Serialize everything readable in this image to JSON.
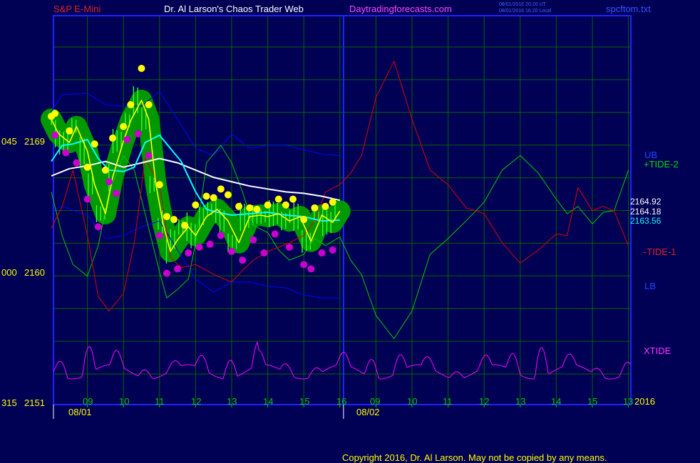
{
  "header": {
    "instrument": "S&P E-Mini",
    "site": "Dr. Al Larson's Chaos Trader Web",
    "url": "Daytradingforecasts.com",
    "stamp1": "08/01/2016 20:20 UT",
    "stamp2": "08/01/2016 16:20 Local",
    "file": "spcftom.txt"
  },
  "axis": {
    "y_left": [
      {
        "code": "045",
        "price": "2169"
      },
      {
        "code": "000",
        "price": "2160"
      },
      {
        "code": "315",
        "price": "2151"
      }
    ],
    "x_hours": [
      "09",
      "10",
      "11",
      "12",
      "13",
      "14",
      "15",
      "16",
      "09",
      "10",
      "11",
      "12",
      "13",
      "14",
      "15",
      "13"
    ],
    "dates": [
      "08/01",
      "08/02"
    ],
    "year": "2016"
  },
  "labels": {
    "ub": "UB",
    "tide2": "+TIDE-2",
    "tide1": "-TIDE-1",
    "lb": "LB",
    "xtide": "XTIDE",
    "price1": "2164.92",
    "price2": "2164.18",
    "price3": "2163.56"
  },
  "footer": {
    "copyright": "Copyright 2016, Dr. Al Larson. May not be copied by any means."
  },
  "colors": {
    "background": "#000055",
    "frame": "#2222ff",
    "grid": "#006600",
    "ub_lb": "#0000ff",
    "tide2": "#00cc00",
    "tide1": "#dd0000",
    "xtide": "#ff00ff",
    "white_avg": "#ffffff",
    "cyan_avg": "#00ffff",
    "yellow_avg": "#ffff00",
    "blob": "#009900",
    "hi_marker": "#ffff00",
    "lo_marker": "#cc00cc"
  },
  "chart_data": {
    "type": "line",
    "y_axis_ticks": [
      2169,
      2160,
      2151
    ],
    "x_ticks": [
      "09",
      "10",
      "11",
      "12",
      "13",
      "14",
      "15",
      "16",
      "09",
      "10",
      "11",
      "12",
      "13",
      "14",
      "15",
      "13"
    ],
    "dates": [
      "08/01",
      "08/02"
    ],
    "last_values": {
      "white": 2164.92,
      "yellow": 2164.18,
      "cyan": 2163.56
    },
    "series": [
      {
        "name": "UB",
        "color": "#0000ff",
        "x": [
          0,
          0.3,
          1,
          1.5,
          2,
          2.5,
          3,
          3.5,
          4,
          4.5,
          5,
          5.5,
          6,
          6.5,
          7,
          7.5,
          8
        ],
        "y": [
          2171,
          2172.2,
          2172.3,
          2171.5,
          2171.4,
          2171.4,
          2172.4,
          2170.5,
          2168.5,
          2168,
          2169.5,
          2168.5,
          2168.7,
          2168.7,
          2168.4,
          2168.1,
          2168
        ]
      },
      {
        "name": "LB",
        "color": "#0000ff",
        "x": [
          0,
          0.3,
          1,
          1.5,
          2,
          2.5,
          3,
          3.5,
          4,
          4.5,
          5,
          5.5,
          6,
          6.5,
          7,
          7.5,
          8
        ],
        "y": [
          2164.2,
          2164.5,
          2163.9,
          2162.3,
          2162.5,
          2163.1,
          2163.5,
          2161.5,
          2159.5,
          2158.6,
          2159.3,
          2159.3,
          2159,
          2158.9,
          2158.4,
          2158.2,
          2158.2
        ]
      },
      {
        "name": "+TIDE-2",
        "color": "#00cc00",
        "x": [
          0,
          0.3,
          0.6,
          1,
          1.3,
          1.6,
          2,
          2.3,
          2.6,
          3,
          3.2,
          3.5,
          3.8,
          4,
          4.3,
          4.7,
          5,
          5.3,
          5.6,
          6,
          6.3,
          6.6,
          7,
          7.3,
          7.6,
          8,
          8.3,
          8.6,
          9,
          9.5,
          10,
          10.5,
          11,
          11.5,
          12,
          12.5,
          13,
          13.5,
          14,
          14.3,
          14.6,
          15,
          15.3,
          15.6,
          16
        ],
        "y": [
          2165.5,
          2162.5,
          2160.5,
          2159.7,
          2161.8,
          2165.5,
          2168,
          2167,
          2164,
          2160,
          2158.2,
          2158.8,
          2159.5,
          2162,
          2167.5,
          2168.7,
          2167.5,
          2165.5,
          2163.2,
          2162.7,
          2161.5,
          2160.8,
          2161.2,
          2162.3,
          2161.8,
          2162.4,
          2160.8,
          2159.8,
          2157,
          2155.4,
          2157.3,
          2161.2,
          2162.3,
          2163.5,
          2164.8,
          2167,
          2168,
          2166.8,
          2165,
          2164,
          2164.5,
          2163.3,
          2164.1,
          2164.2,
          2167
        ]
      },
      {
        "name": "-TIDE-1",
        "color": "#dd0000",
        "x": [
          0,
          0.3,
          0.6,
          1,
          1.3,
          1.6,
          2,
          2.3,
          2.6,
          3,
          3.3,
          3.6,
          4,
          4.3,
          4.6,
          5,
          5.3,
          5.6,
          6,
          6.3,
          6.6,
          7,
          7.3,
          7.6,
          8,
          8.3,
          8.6,
          9,
          9.5,
          10,
          10.5,
          11,
          11.5,
          12,
          12.5,
          13,
          13.5,
          14,
          14.3,
          14.6,
          15,
          15.3,
          15.6,
          16
        ],
        "y": [
          2163,
          2164.5,
          2167,
          2162.5,
          2158.3,
          2157.3,
          2158.5,
          2162,
          2167.8,
          2166,
          2161,
          2160.3,
          2160.5,
          2160.1,
          2159.7,
          2159.3,
          2160.1,
          2160.8,
          2161.4,
          2161.7,
          2162,
          2162.5,
          2163.5,
          2165.5,
          2166,
          2166.8,
          2168,
          2172,
          2174.5,
          2170.5,
          2167,
          2166,
          2164.4,
          2164,
          2162,
          2160.6,
          2161.5,
          2162.6,
          2162.5,
          2165.8,
          2164.2,
          2164.5,
          2164.2,
          2161.8
        ]
      },
      {
        "name": "XTIDE",
        "color": "#ff00ff"
      },
      {
        "name": "white",
        "color": "#ffffff",
        "x": [
          0,
          0.5,
          1,
          1.5,
          2,
          2.5,
          3,
          3.5,
          4,
          4.5,
          5,
          5.5,
          6,
          6.5,
          7,
          7.5,
          8
        ],
        "y": [
          2166.6,
          2167.1,
          2167.3,
          2167.6,
          2167.2,
          2167.5,
          2167.8,
          2167.5,
          2167,
          2166.5,
          2166.2,
          2165.9,
          2165.7,
          2165.5,
          2165.4,
          2165.2,
          2164.92
        ]
      },
      {
        "name": "cyan",
        "color": "#00ffff",
        "x": [
          0,
          0.3,
          0.6,
          1,
          1.3,
          1.6,
          2,
          2.3,
          2.6,
          3,
          3.3,
          3.6,
          4,
          4.3,
          4.6,
          5,
          5.5,
          6,
          6.5,
          7,
          7.5,
          8
        ],
        "y": [
          2167.6,
          2168.7,
          2168.8,
          2169.1,
          2167.8,
          2167,
          2166.9,
          2167.2,
          2168.9,
          2169.4,
          2168.5,
          2167.6,
          2165.5,
          2164.3,
          2164.1,
          2163.9,
          2164,
          2164.1,
          2163.9,
          2163.8,
          2163.5,
          2163.56
        ]
      },
      {
        "name": "yellow",
        "color": "#ffff00",
        "x": [
          0,
          0.2,
          0.5,
          0.7,
          1,
          1.2,
          1.5,
          1.7,
          2,
          2.2,
          2.5,
          2.7,
          2.9,
          3.1,
          3.3,
          3.5,
          3.8,
          4,
          4.3,
          4.6,
          4.9,
          5.2,
          5.5,
          5.8,
          6,
          6.3,
          6.6,
          6.9,
          7.2,
          7.5,
          7.8,
          8
        ],
        "y": [
          2170.5,
          2169.5,
          2168.9,
          2170,
          2168.3,
          2166,
          2164,
          2166.5,
          2169,
          2170.4,
          2171.8,
          2170.5,
          2166,
          2163.3,
          2161.4,
          2162.2,
          2163.1,
          2162.5,
          2163.8,
          2164.3,
          2163.5,
          2162,
          2163.8,
          2163.9,
          2163.8,
          2164,
          2163.5,
          2163.8,
          2162.1,
          2163.9,
          2163.4,
          2164.18
        ]
      },
      {
        "name": "high markers",
        "color": "#ffff00",
        "x": [
          0,
          0.1,
          0.5,
          1,
          1.2,
          1.5,
          1.7,
          2,
          2.2,
          2.5,
          2.7,
          3,
          3.2,
          3.4,
          3.7,
          4,
          4.3,
          4.5,
          4.7,
          4.9,
          5.2,
          5.5,
          5.7,
          6,
          6.3,
          6.5,
          6.7,
          7,
          7.3,
          7.6,
          7.8
        ],
        "y": [
          2170.7,
          2170.9,
          2169.7,
          2167.2,
          2168.8,
          2167,
          2169.2,
          2170,
          2171.5,
          2174,
          2171.5,
          2166,
          2163.8,
          2163.6,
          2163.2,
          2164.6,
          2165.2,
          2165.1,
          2165.7,
          2165.3,
          2164.5,
          2164.4,
          2164.3,
          2164.6,
          2165,
          2164.6,
          2165,
          2163.6,
          2164.4,
          2164.5,
          2164.8
        ]
      },
      {
        "name": "low markers",
        "color": "#cc00cc",
        "x": [
          0.1,
          0.4,
          0.7,
          1,
          1.3,
          1.6,
          1.8,
          2.1,
          2.4,
          2.7,
          3,
          3.2,
          3.5,
          3.8,
          4.1,
          4.4,
          4.7,
          5,
          5.3,
          5.6,
          5.9,
          6.2,
          6.6,
          7,
          7.2,
          7.5,
          7.8
        ],
        "y": [
          2169.4,
          2168.2,
          2167.5,
          2165,
          2163.1,
          2166.2,
          2165.4,
          2169.1,
          2169.5,
          2168,
          2162.5,
          2159.9,
          2160.2,
          2161.3,
          2161.7,
          2161.9,
          2162.5,
          2161.4,
          2160.8,
          2162.2,
          2161.3,
          2162.6,
          2161.7,
          2160.5,
          2160.2,
          2161.3,
          2161.5
        ]
      }
    ]
  }
}
